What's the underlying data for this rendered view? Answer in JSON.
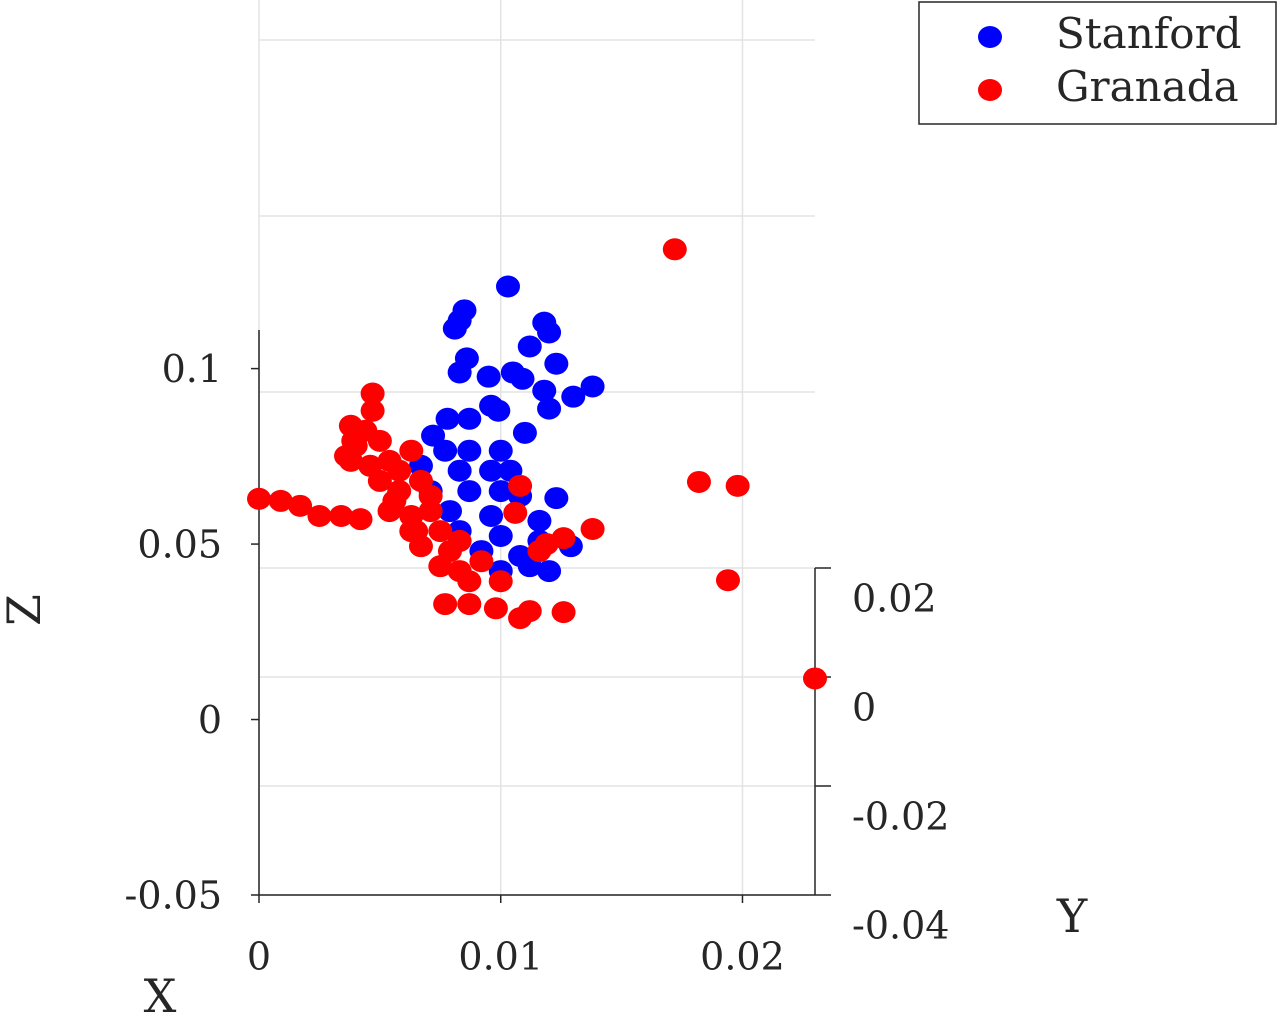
{
  "chart_data": {
    "type": "scatter",
    "xlabel": "X",
    "ylabel": "Y",
    "zlabel": "Z",
    "xlim": [
      0,
      0.023
    ],
    "xticks": [
      0,
      0.01,
      0.02
    ],
    "zlim": [
      -0.05,
      0.111
    ],
    "zticks": [
      -0.05,
      0,
      0.05,
      0.1
    ],
    "ylim": [
      -0.04,
      0.02
    ],
    "yticks": [
      -0.04,
      -0.02,
      0,
      0.02
    ],
    "grid": true,
    "legend": "outside-top-right",
    "series": [
      {
        "name": "Stanford",
        "color": "#0000ff",
        "x": [
          0.0103,
          0.0085,
          0.0083,
          0.0081,
          0.0118,
          0.012,
          0.0112,
          0.0123,
          0.0086,
          0.0083,
          0.0095,
          0.0105,
          0.0109,
          0.0118,
          0.012,
          0.013,
          0.0138,
          0.0096,
          0.0099,
          0.0078,
          0.0087,
          0.011,
          0.0072,
          0.0077,
          0.0087,
          0.01,
          0.0067,
          0.0083,
          0.0096,
          0.0104,
          0.0071,
          0.0087,
          0.01,
          0.0108,
          0.0123,
          0.0079,
          0.0096,
          0.0116,
          0.0083,
          0.01,
          0.0116,
          0.0129,
          0.0108,
          0.012,
          0.01,
          0.0112,
          0.0092
        ],
        "values": [
          0.1234,
          0.1166,
          0.1137,
          0.1114,
          0.1131,
          0.1103,
          0.1063,
          0.1014,
          0.1029,
          0.0989,
          0.0977,
          0.0989,
          0.0971,
          0.0937,
          0.0886,
          0.092,
          0.0949,
          0.0894,
          0.088,
          0.0857,
          0.0857,
          0.0817,
          0.0809,
          0.0766,
          0.0766,
          0.0766,
          0.0723,
          0.0709,
          0.0709,
          0.0709,
          0.0651,
          0.0651,
          0.0651,
          0.0637,
          0.0631,
          0.0594,
          0.058,
          0.0566,
          0.0537,
          0.0523,
          0.0509,
          0.0494,
          0.0466,
          0.0423,
          0.0423,
          0.0437,
          0.048
        ]
      },
      {
        "name": "Granada",
        "color": "#ff0000",
        "x": [
          0.0172,
          0.0182,
          0.0198,
          0.0194,
          0.023,
          0.0,
          0.0009,
          0.0017,
          0.0025,
          0.0034,
          0.0042,
          0.0047,
          0.0047,
          0.0038,
          0.0044,
          0.004,
          0.005,
          0.0038,
          0.0046,
          0.0054,
          0.0063,
          0.005,
          0.0058,
          0.0067,
          0.0054,
          0.0063,
          0.0071,
          0.0065,
          0.0075,
          0.0067,
          0.0079,
          0.0075,
          0.0083,
          0.0087,
          0.0077,
          0.0087,
          0.0098,
          0.0108,
          0.0112,
          0.0126,
          0.0108,
          0.0106,
          0.0119,
          0.0126,
          0.0138,
          0.0116,
          0.01,
          0.0092,
          0.0083,
          0.0071,
          0.0058,
          0.0039,
          0.0036,
          0.0056,
          0.0063
        ],
        "values": [
          0.134,
          0.0677,
          0.0666,
          0.0397,
          0.0117,
          0.0629,
          0.0623,
          0.0609,
          0.058,
          0.058,
          0.0571,
          0.0929,
          0.088,
          0.0837,
          0.0823,
          0.078,
          0.0794,
          0.0737,
          0.0723,
          0.0737,
          0.0766,
          0.068,
          0.0651,
          0.068,
          0.0594,
          0.058,
          0.0594,
          0.0537,
          0.0537,
          0.0494,
          0.048,
          0.0437,
          0.0423,
          0.0394,
          0.0329,
          0.0329,
          0.0317,
          0.0289,
          0.0309,
          0.0306,
          0.0666,
          0.0589,
          0.05,
          0.0517,
          0.0543,
          0.048,
          0.0394,
          0.0451,
          0.0509,
          0.0637,
          0.0709,
          0.0794,
          0.0751,
          0.0623,
          0.0537
        ]
      }
    ]
  }
}
